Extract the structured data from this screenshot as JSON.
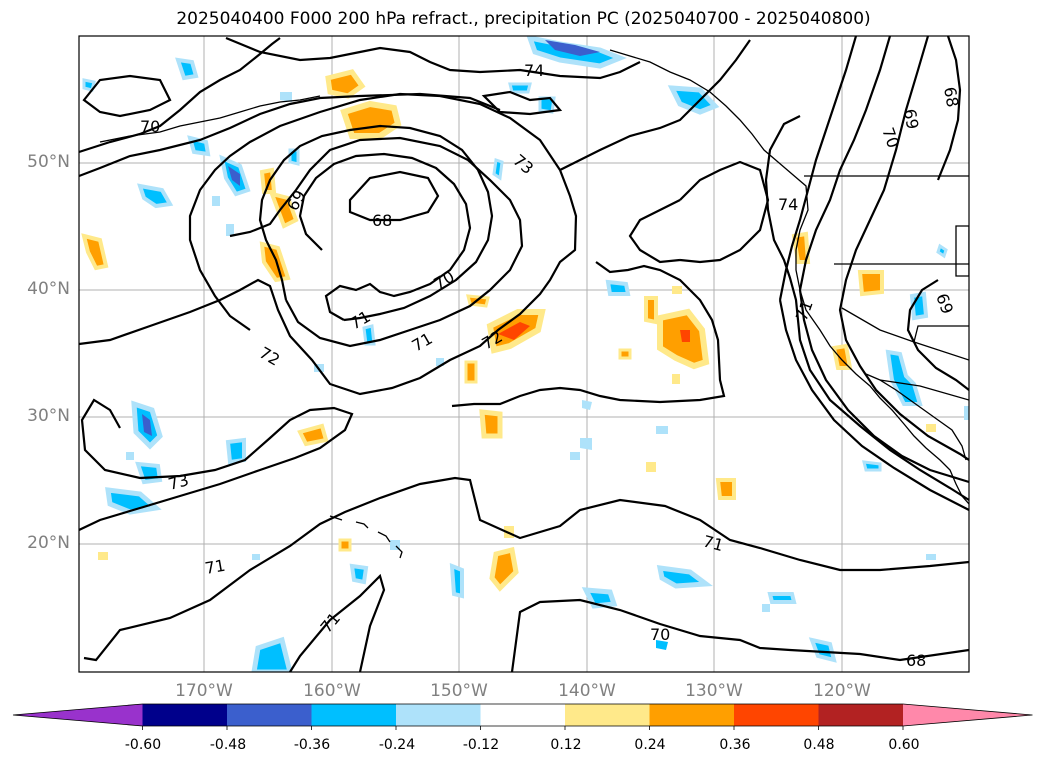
{
  "title": "2025040400 F000 200 hPa refract., precipitation PC (2025040700 - 2025040800)",
  "latitude_labels": [
    "50°N",
    "40°N",
    "30°N",
    "20°N"
  ],
  "longitude_labels": [
    "170°W",
    "160°W",
    "150°W",
    "140°W",
    "130°W",
    "120°W"
  ],
  "contour_labels": [
    "74",
    "73",
    "72",
    "71",
    "70",
    "69",
    "68",
    "70",
    "71",
    "72",
    "73",
    "71",
    "71",
    "70",
    "71",
    "74",
    "71",
    "69",
    "70",
    "69",
    "68",
    "68"
  ],
  "colorbar": {
    "colors": [
      "#9932cc",
      "#00008b",
      "#3b5fcd",
      "#00bfff",
      "#aee2fa",
      "#ffffff",
      "#ffe98a",
      "#ff9f00",
      "#ff4500",
      "#b22222",
      "#ff88aa"
    ],
    "tick_labels": [
      "-0.60",
      "-0.48",
      "-0.36",
      "-0.24",
      "-0.12",
      "0.12",
      "0.24",
      "0.36",
      "0.48",
      "0.60"
    ]
  }
}
